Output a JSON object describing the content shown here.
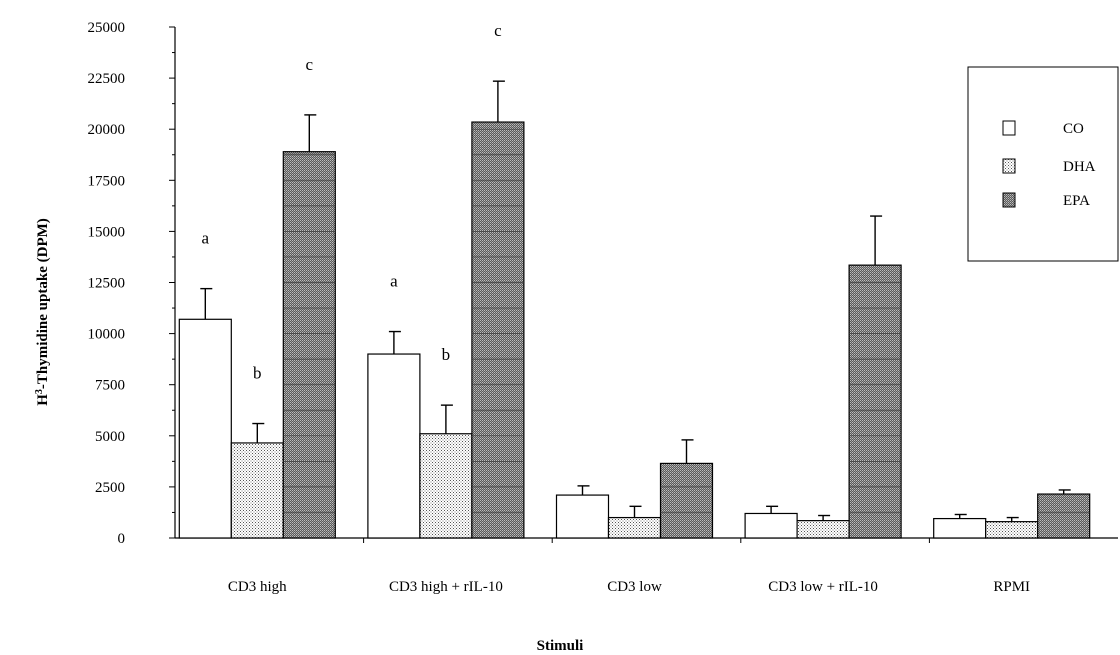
{
  "chart_data": {
    "type": "bar",
    "xlabel": "Stimuli",
    "ylabel_main": "H",
    "ylabel_sup": "3",
    "ylabel_rest": "-Thymidine uptake (DPM)",
    "ylim": [
      0,
      25000
    ],
    "yticks": [
      0,
      2500,
      5000,
      7500,
      10000,
      12500,
      15000,
      17500,
      20000,
      22500,
      25000
    ],
    "categories": [
      "CD3 high",
      "CD3 high + rIL-10",
      "CD3 low",
      "CD3 low + rIL-10",
      "RPMI"
    ],
    "series": [
      {
        "name": "CO",
        "values": [
          10700,
          9000,
          2100,
          1200,
          950
        ],
        "errors": [
          1500,
          1100,
          450,
          350,
          200
        ],
        "letters": [
          "a",
          "a",
          "",
          "",
          ""
        ],
        "color": "#ffffff"
      },
      {
        "name": "DHA",
        "values": [
          4650,
          5100,
          1000,
          850,
          800
        ],
        "errors": [
          950,
          1400,
          550,
          250,
          200
        ],
        "letters": [
          "b",
          "b",
          "",
          "",
          ""
        ],
        "color": "#d8d8d8"
      },
      {
        "name": "EPA",
        "values": [
          18900,
          20350,
          3650,
          13350,
          2150
        ],
        "errors": [
          1800,
          2000,
          1150,
          2400,
          200
        ],
        "letters": [
          "c",
          "c",
          "",
          "",
          ""
        ],
        "color": "#8c8c8c"
      }
    ],
    "legend_position": "top-right",
    "grid": false
  }
}
